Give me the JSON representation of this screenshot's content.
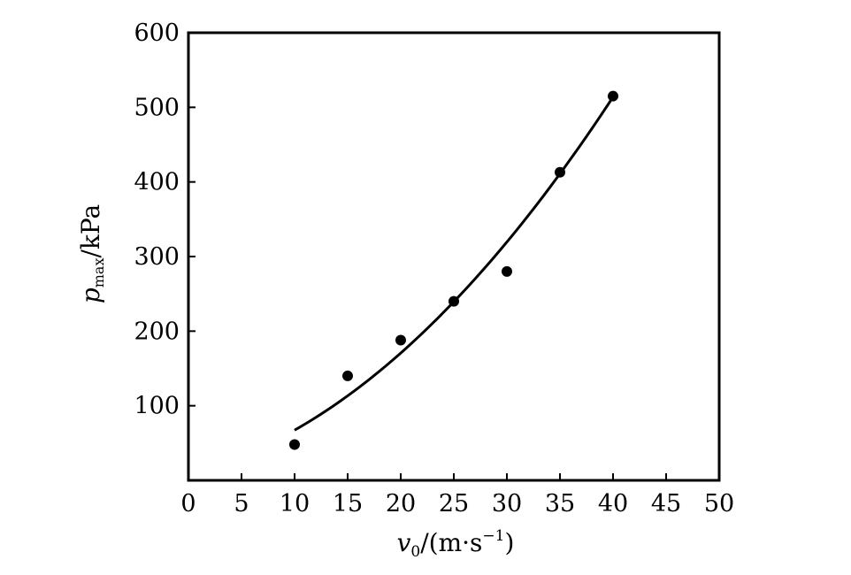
{
  "chart_data": {
    "type": "scatter",
    "xlim": [
      0,
      50
    ],
    "ylim": [
      0,
      600
    ],
    "x_ticks": [
      0,
      5,
      10,
      15,
      20,
      25,
      30,
      35,
      40,
      45,
      50
    ],
    "y_ticks": [
      100,
      200,
      300,
      400,
      500,
      600
    ],
    "x_tick_labels": [
      "0",
      "5",
      "10",
      "15",
      "20",
      "25",
      "30",
      "35",
      "40",
      "45",
      "50"
    ],
    "y_tick_labels": [
      "100",
      "200",
      "300",
      "400",
      "500",
      "600"
    ],
    "xlabel": {
      "symbol": "v",
      "subscript": "0",
      "unit_prefix": "/(m·s",
      "superscript": "−1",
      "unit_suffix": ")"
    },
    "ylabel": {
      "symbol": "p",
      "subscript": "max",
      "unit": "/kPa"
    },
    "grid": false,
    "points": {
      "x": [
        10,
        15,
        20,
        25,
        30,
        35,
        40
      ],
      "y": [
        48,
        140,
        188,
        240,
        280,
        413,
        515
      ]
    },
    "fit_curve": {
      "x": [
        10,
        15,
        20,
        25,
        30,
        35,
        40
      ],
      "y": [
        66,
        115,
        172,
        238,
        318,
        412,
        514
      ]
    }
  }
}
